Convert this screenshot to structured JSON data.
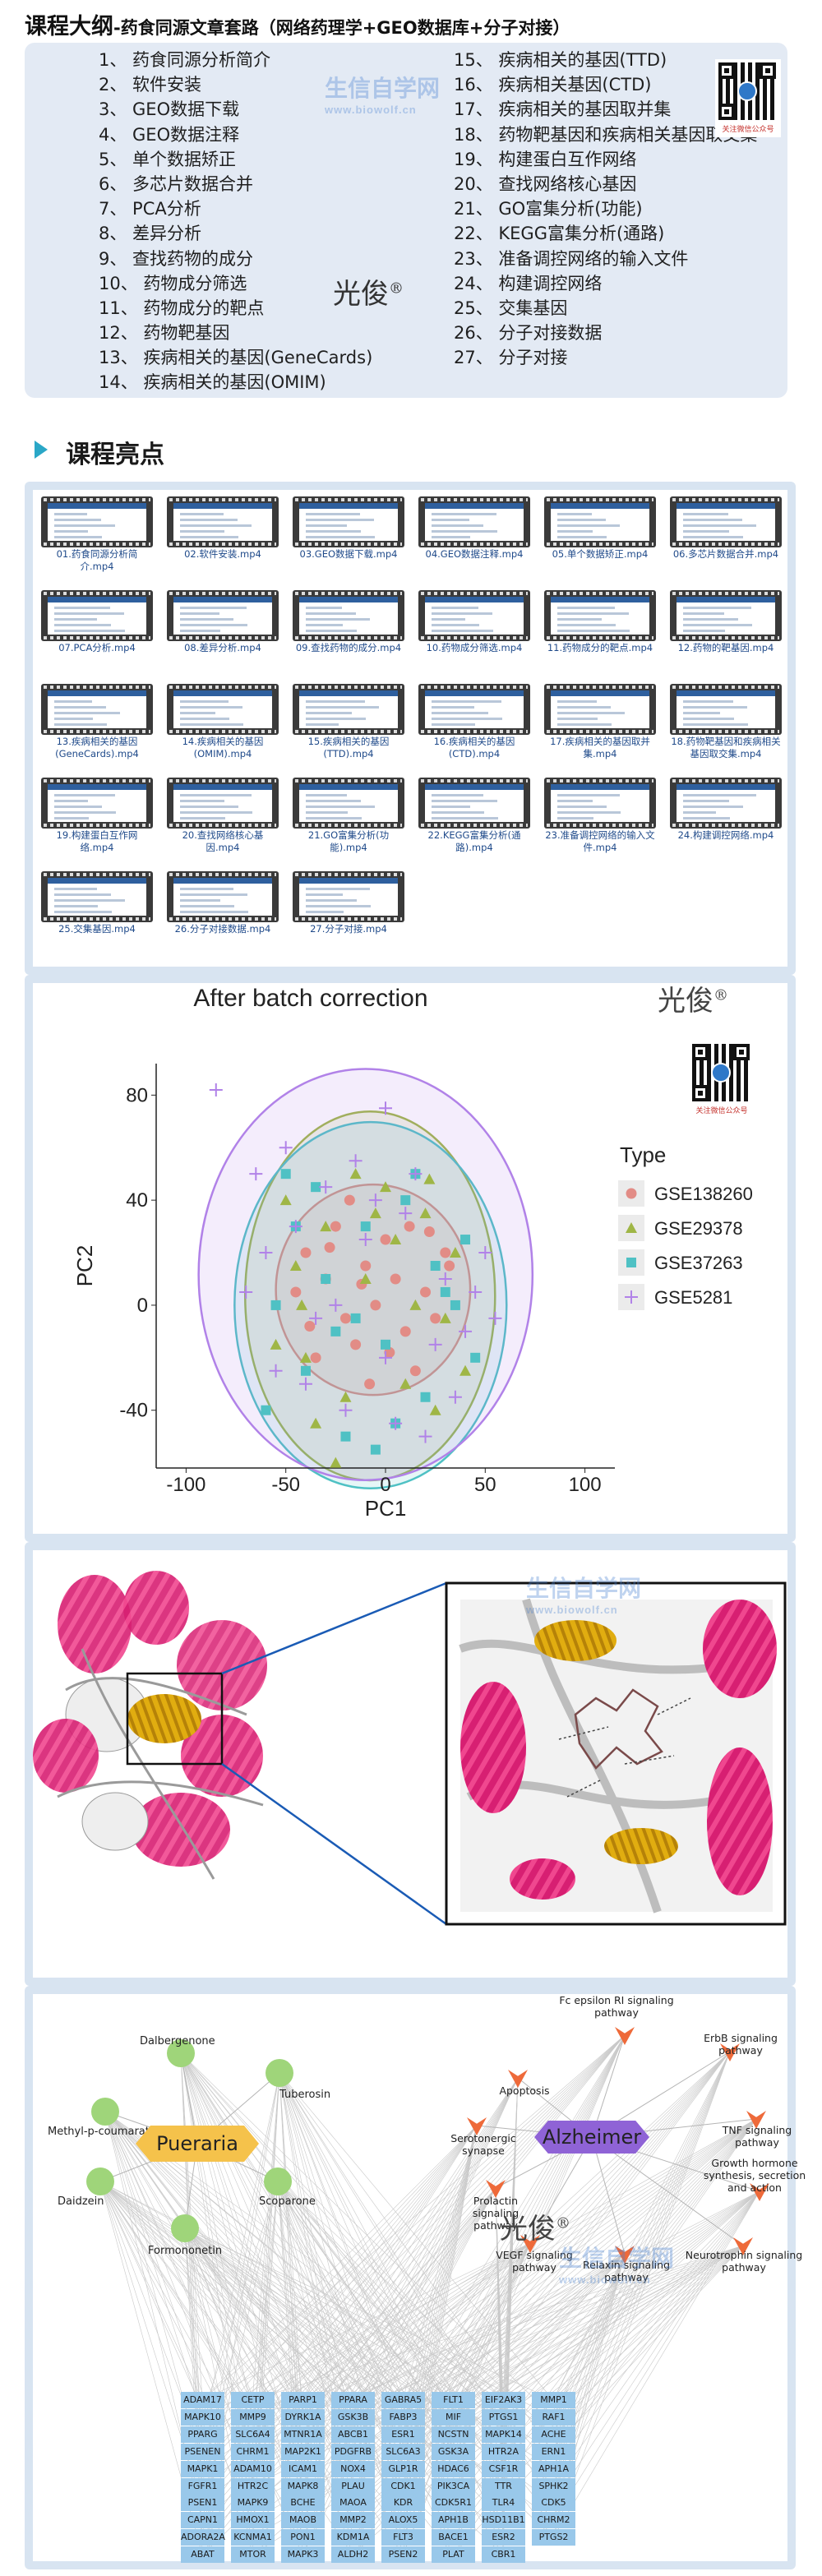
{
  "header": {
    "title": "课程大纲",
    "subtitle": "-药食同源文章套路（网络药理学+GEO数据库+分子对接）"
  },
  "outline": {
    "left": [
      "1、 药食同源分析简介",
      "2、 软件安装",
      "3、 GEO数据下载",
      "4、 GEO数据注释",
      "5、 单个数据矫正",
      "6、 多芯片数据合并",
      "7、 PCA分析",
      "8、 差异分析",
      "9、 查找药物的成分",
      "10、 药物成分筛选",
      "11、 药物成分的靶点",
      "12、 药物靶基因",
      "13、 疾病相关的基因(GeneCards)",
      "14、 疾病相关的基因(OMIM)"
    ],
    "right": [
      "15、 疾病相关的基因(TTD)",
      "16、 疾病相关基因(CTD)",
      "17、 疾病相关的基因取并集",
      "18、 药物靶基因和疾病相关基因取交集",
      "19、 构建蛋白互作网络",
      "20、 查找网络核心基因",
      "21、 GO富集分析(功能)",
      "22、 KEGG富集分析(通路)",
      "23、 准备调控网络的输入文件",
      "24、 构建调控网络",
      "25、 交集基因",
      "26、 分子对接数据",
      "27、 分子对接"
    ],
    "author": "光俊",
    "qr_caption": "关注微信公众号"
  },
  "watermark": {
    "name": "生信自学网",
    "url": "www.biowolf.cn"
  },
  "highlights": {
    "title": "课程亮点"
  },
  "videos": [
    "01.药食同源分析简介.mp4",
    "02.软件安装.mp4",
    "03.GEO数据下载.mp4",
    "04.GEO数据注释.mp4",
    "05.单个数据矫正.mp4",
    "06.多芯片数据合并.mp4",
    "07.PCA分析.mp4",
    "08.差异分析.mp4",
    "09.查找药物的成分.mp4",
    "10.药物成分筛选.mp4",
    "11.药物成分的靶点.mp4",
    "12.药物的靶基因.mp4",
    "13.疾病相关的基因(GeneCards).mp4",
    "14.疾病相关的基因(OMIM).mp4",
    "15.疾病相关的基因(TTD).mp4",
    "16.疾病相关的基因(CTD).mp4",
    "17.疾病相关的基因取并集.mp4",
    "18.药物靶基因和疾病相关基因取交集.mp4",
    "19.构建蛋白互作网络.mp4",
    "20.查找网络核心基因.mp4",
    "21.GO富集分析(功能).mp4",
    "22.KEGG富集分析(通路).mp4",
    "23.准备调控网络的输入文件.mp4",
    "24.构建调控网络.mp4",
    "25.交集基因.mp4",
    "26.分子对接数据.mp4",
    "27.分子对接.mp4"
  ],
  "chart_data": {
    "type": "scatter",
    "title": "After batch correction",
    "xlabel": "PC1",
    "ylabel": "PC2",
    "xlim": [
      -115,
      115
    ],
    "ylim": [
      -62,
      92
    ],
    "xticks": [
      -100,
      -50,
      0,
      50,
      100
    ],
    "yticks": [
      -40,
      0,
      40,
      80
    ],
    "legend_title": "Type",
    "legend_position": "right",
    "grid": false,
    "series": [
      {
        "name": "GSE138260",
        "color": "#e28c86",
        "marker": "circle",
        "x": [
          -40,
          -30,
          -20,
          -10,
          0,
          10,
          20,
          30,
          -35,
          -25,
          -15,
          -5,
          5,
          15,
          25,
          -45,
          -28,
          -8,
          12,
          32,
          -18,
          2,
          22,
          -38,
          -12
        ],
        "y": [
          20,
          10,
          -5,
          15,
          25,
          -10,
          5,
          20,
          -20,
          30,
          -15,
          0,
          10,
          -25,
          -5,
          5,
          22,
          -30,
          30,
          15,
          40,
          -18,
          28,
          -8,
          8
        ]
      },
      {
        "name": "GSE29378",
        "color": "#9fb646",
        "marker": "triangle",
        "x": [
          -50,
          -40,
          -30,
          -20,
          -10,
          0,
          10,
          20,
          30,
          -45,
          -35,
          -15,
          5,
          25,
          35,
          -25,
          15,
          -5,
          -55,
          40,
          -42,
          22
        ],
        "y": [
          40,
          -20,
          30,
          -35,
          10,
          45,
          -30,
          35,
          -5,
          15,
          -45,
          50,
          25,
          -40,
          20,
          -60,
          0,
          35,
          -15,
          -25,
          0,
          48
        ]
      },
      {
        "name": "GSE37263",
        "color": "#4fc1c4",
        "marker": "square",
        "x": [
          -60,
          -50,
          -40,
          -30,
          -20,
          -10,
          0,
          10,
          20,
          30,
          40,
          -55,
          -35,
          -15,
          5,
          25,
          45,
          -45,
          -25,
          15,
          35,
          -5
        ],
        "y": [
          -40,
          50,
          -25,
          10,
          -50,
          30,
          -15,
          40,
          -35,
          5,
          25,
          0,
          45,
          -5,
          -45,
          15,
          -20,
          30,
          -10,
          50,
          0,
          -55
        ]
      },
      {
        "name": "GSE5281",
        "color": "#b182e8",
        "marker": "plus",
        "x": [
          -85,
          -65,
          -50,
          -40,
          -30,
          -20,
          -10,
          0,
          10,
          20,
          30,
          40,
          50,
          5,
          -60,
          -35,
          -15,
          15,
          35,
          -25,
          25,
          -5,
          45,
          -45,
          -55,
          55,
          -70,
          0
        ],
        "y": [
          82,
          50,
          60,
          -30,
          45,
          -40,
          25,
          -20,
          35,
          -50,
          10,
          -10,
          20,
          -45,
          20,
          -5,
          55,
          50,
          -35,
          0,
          -15,
          40,
          5,
          30,
          -25,
          -5,
          5,
          75
        ]
      }
    ],
    "ellipses_by_series": [
      "GSE138260",
      "GSE29378",
      "GSE37263",
      "GSE5281"
    ],
    "author": "光俊"
  },
  "network": {
    "herb": "Pueraria",
    "disease": "Alzheimer",
    "compounds": [
      "Dalbergenone",
      "Methyl-p-coumarate",
      "Tuberosin",
      "Daidzein",
      "Scoparone",
      "Formononetin"
    ],
    "pathways": [
      "Fc epsilon RI signaling pathway",
      "ErbB signaling pathway",
      "Apoptosis",
      "TNF signaling pathway",
      "Serotonergic synapse",
      "Growth hormone synthesis, secretion and action",
      "Prolactin signaling pathway",
      "Neurotrophin signaling pathway",
      "VEGF signaling pathway",
      "Relaxin signaling pathway"
    ],
    "genes": [
      [
        "ADAM17",
        "CETP",
        "PARP1",
        "PPARA",
        "GABRA5",
        "FLT1",
        "EIF2AK3",
        "MMP1"
      ],
      [
        "MAPK10",
        "MMP9",
        "DYRK1A",
        "GSK3B",
        "FABP3",
        "MIF",
        "PTGS1",
        "RAF1"
      ],
      [
        "PPARG",
        "SLC6A4",
        "MTNR1A",
        "ABCB1",
        "ESR1",
        "NCSTN",
        "MAPK14",
        "ACHE"
      ],
      [
        "PSENEN",
        "CHRM1",
        "MAP2K1",
        "PDGFRB",
        "SLC6A3",
        "GSK3A",
        "HTR2A",
        "ERN1"
      ],
      [
        "MAPK1",
        "ADAM10",
        "ICAM1",
        "NOX4",
        "GLP1R",
        "HDAC6",
        "CSF1R",
        "APH1A"
      ],
      [
        "FGFR1",
        "HTR2C",
        "MAPK8",
        "PLAU",
        "CDK1",
        "PIK3CA",
        "TTR",
        "SPHK2"
      ],
      [
        "PSEN1",
        "MAPK9",
        "BCHE",
        "MAOA",
        "KDR",
        "CDK5R1",
        "TLR4",
        "CDK5"
      ],
      [
        "CAPN1",
        "HMOX1",
        "MAOB",
        "MMP2",
        "ALOX5",
        "APH1B",
        "HSD11B1",
        "CHRM2"
      ],
      [
        "ADORA2A",
        "KCNMA1",
        "PON1",
        "KDM1A",
        "FLT3",
        "BACE1",
        "ESR2",
        "PTGS2"
      ],
      [
        "ABAT",
        "MTOR",
        "MAPK3",
        "ALDH2",
        "PSEN2",
        "PLAT",
        "CBR1"
      ]
    ],
    "author": "光俊"
  }
}
